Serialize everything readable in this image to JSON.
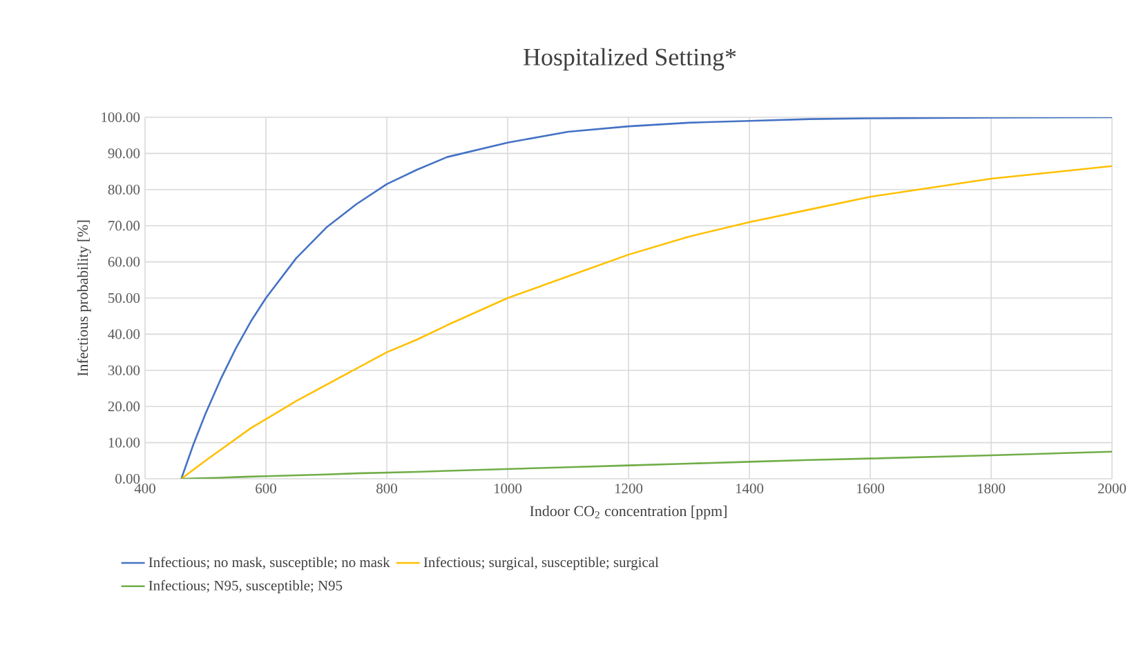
{
  "chart_data": {
    "type": "line",
    "title": "Hospitalized Setting*",
    "xlabel": "Indoor CO$_{2}$ concentration [ppm]",
    "ylabel": "Infectious probability [%]",
    "x": [
      460,
      480,
      500,
      525,
      550,
      575,
      600,
      650,
      700,
      750,
      800,
      850,
      900,
      1000,
      1100,
      1200,
      1300,
      1400,
      1500,
      1600,
      1800,
      2000
    ],
    "series": [
      {
        "name": "Infectious;  no mask, susceptible; no mask",
        "color": "#4472c4",
        "values": [
          0,
          9.5,
          18,
          27.5,
          36,
          43.5,
          50,
          61,
          69.5,
          76,
          81.5,
          85.5,
          89,
          93,
          96,
          97.5,
          98.5,
          99,
          99.5,
          99.7,
          99.9,
          100
        ]
      },
      {
        "name": "Infectious; surgical, susceptible; surgical",
        "color": "#ffc000",
        "values": [
          0,
          2.5,
          5,
          8,
          11,
          14,
          16.5,
          21.5,
          26,
          30.5,
          35,
          38.5,
          42.5,
          50,
          56,
          62,
          67,
          71,
          74.5,
          78,
          83,
          86.5
        ]
      },
      {
        "name": "Infectious; N95, susceptible; N95",
        "color": "#70ad47",
        "values": [
          0,
          0.1,
          0.2,
          0.3,
          0.45,
          0.6,
          0.7,
          0.95,
          1.2,
          1.5,
          1.7,
          1.9,
          2.2,
          2.7,
          3.2,
          3.7,
          4.2,
          4.7,
          5.2,
          5.6,
          6.5,
          7.5
        ]
      }
    ],
    "xlim": [
      400,
      2000
    ],
    "xticks": [
      400,
      600,
      800,
      1000,
      1200,
      1400,
      1600,
      1800,
      2000
    ],
    "ylim": [
      0,
      100
    ],
    "yticks": [
      {
        "value": 0,
        "label": "0.00"
      },
      {
        "value": 10,
        "label": "10.00"
      },
      {
        "value": 20,
        "label": "20.00"
      },
      {
        "value": 30,
        "label": "30.00"
      },
      {
        "value": 40,
        "label": "40.00"
      },
      {
        "value": 50,
        "label": "50.00"
      },
      {
        "value": 60,
        "label": "60.00"
      },
      {
        "value": 70,
        "label": "70.00"
      },
      {
        "value": 80,
        "label": "80.00"
      },
      {
        "value": 90,
        "label": "90.00"
      },
      {
        "value": 100,
        "label": "100.00"
      }
    ],
    "grid": true,
    "legend": "bottom",
    "marker": "none",
    "line_style": "solid"
  }
}
